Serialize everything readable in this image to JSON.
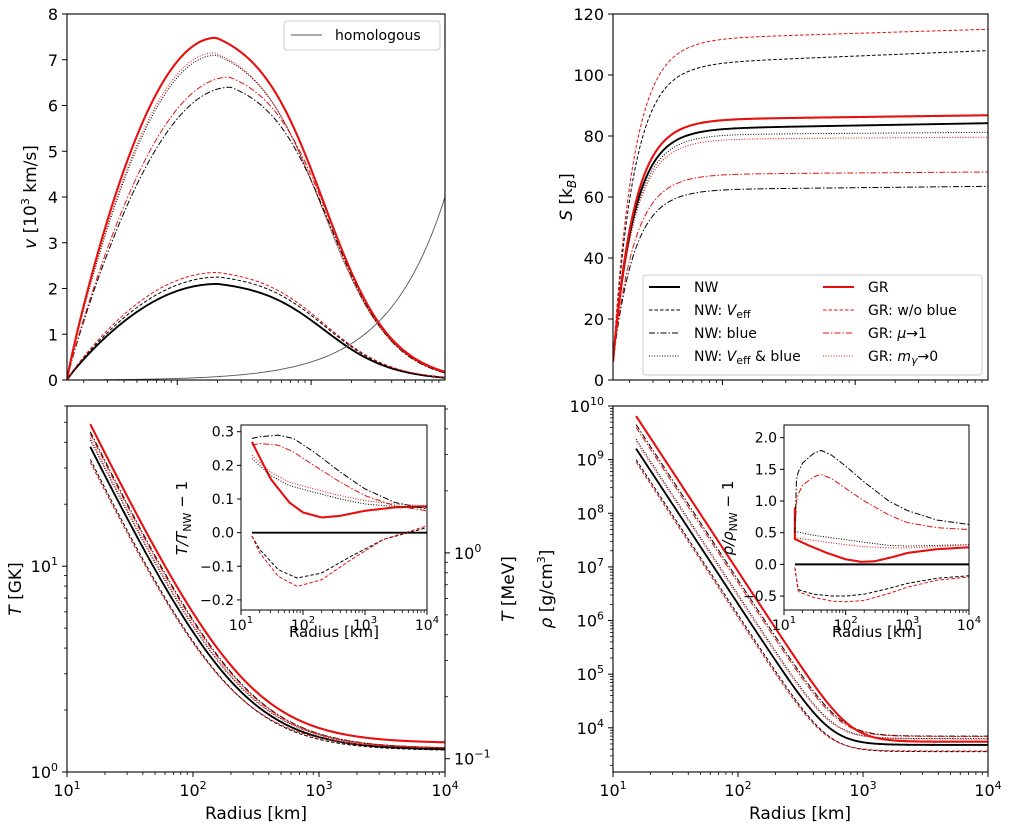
{
  "colors": {
    "nw": "#000000",
    "gr": "#e8100f",
    "homologous": "#555555",
    "frame": "#000000"
  },
  "labels": {
    "radius": "Radius [km]",
    "v_var": "v",
    "v_unit_pre": "[10",
    "v_unit_exp": "3",
    "v_unit_post": " km/s]",
    "s_var": "S",
    "s_unit_pre": "[k",
    "s_unit_sub": "B",
    "s_unit_post": "]",
    "t_var": "T",
    "t_unit": "[GK]",
    "t_unit_r": "[MeV]",
    "rho_var": "ρ",
    "rho_unit_pre": "[g/cm",
    "rho_unit_exp": "3",
    "rho_unit_post": "]",
    "dt_pre": "T/T",
    "dt_sub": "NW",
    "dt_post": " − 1",
    "drho_pre": "ρ/ρ",
    "drho_sub": "NW",
    "drho_post": " − 1"
  },
  "legend_homologous": "homologous",
  "legend": {
    "nw": "NW",
    "nw_veff_pre": "NW: ",
    "nw_veff_var": "V",
    "nw_veff_sub": "eff",
    "nw_blue": "NW: blue",
    "nw_vb_pre": "NW: ",
    "nw_vb_var": "V",
    "nw_vb_sub": "eff",
    "nw_vb_post": " & blue",
    "gr": "GR",
    "gr_woblue": "GR: w/o blue",
    "gr_mu_pre": "GR: ",
    "gr_mu_var": "μ",
    "gr_mu_post": "→1",
    "gr_m_pre": "GR: ",
    "gr_m_var": "m",
    "gr_m_sub": "γ",
    "gr_m_post": "→0"
  },
  "chart_data": [
    {
      "panel": "velocity",
      "type": "line",
      "xlabel": "Radius [km]",
      "ylabel": "v [10^3 km/s]",
      "xscale": "log",
      "xlim": [
        15,
        10000
      ],
      "ylim": [
        0,
        8
      ],
      "yticks": [
        "0",
        "1",
        "2",
        "3",
        "4",
        "5",
        "6",
        "7",
        "8"
      ],
      "series": [
        {
          "name": "NW",
          "style": "solid",
          "color": "nw",
          "peak_r": 200,
          "peak_v": 2.1
        },
        {
          "name": "NW: Veff",
          "style": "dashed",
          "color": "nw",
          "peak_r": 205,
          "peak_v": 2.25
        },
        {
          "name": "NW: Veff & blue",
          "style": "dotted",
          "color": "nw",
          "peak_r": 195,
          "peak_v": 7.1
        },
        {
          "name": "NW: blue",
          "style": "dashdot",
          "color": "nw",
          "peak_r": 250,
          "peak_v": 6.4
        },
        {
          "name": "GR",
          "style": "solid",
          "color": "gr",
          "peak_r": 195,
          "peak_v": 7.48
        },
        {
          "name": "GR: w/o blue",
          "style": "dashed",
          "color": "gr",
          "peak_r": 200,
          "peak_v": 2.35
        },
        {
          "name": "GR: mγ→0",
          "style": "dotted",
          "color": "gr",
          "peak_r": 190,
          "peak_v": 7.15
        },
        {
          "name": "GR: μ→1",
          "style": "dashdot",
          "color": "gr",
          "peak_r": 245,
          "peak_v": 6.62
        },
        {
          "name": "homologous",
          "style": "thin",
          "color": "homologous",
          "v_at_rmax": 4.0
        }
      ]
    },
    {
      "panel": "entropy",
      "type": "line",
      "xlabel": "Radius [km]",
      "ylabel": "S [k_B]",
      "xscale": "log",
      "xlim": [
        15,
        10000
      ],
      "ylim": [
        0,
        120
      ],
      "yticks": [
        "0",
        "20",
        "40",
        "60",
        "80",
        "100",
        "120"
      ],
      "series": [
        {
          "name": "NW",
          "style": "solid",
          "color": "nw",
          "s0": 6,
          "s_plateau": 82.5,
          "s_end": 84.2
        },
        {
          "name": "NW: Veff",
          "style": "dashed",
          "color": "nw",
          "s0": 6,
          "s_plateau": 104,
          "s_end": 108
        },
        {
          "name": "NW: blue",
          "style": "dashdot",
          "color": "nw",
          "s0": 6,
          "s_plateau": 62.5,
          "s_end": 63.5
        },
        {
          "name": "NW: Veff & blue",
          "style": "dotted",
          "color": "nw",
          "s0": 6,
          "s_plateau": 80.5,
          "s_end": 81.2
        },
        {
          "name": "GR",
          "style": "solid",
          "color": "gr",
          "s0": 6,
          "s_plateau": 85.5,
          "s_end": 86.8
        },
        {
          "name": "GR: w/o blue",
          "style": "dashed",
          "color": "gr",
          "s0": 6,
          "s_plateau": 112,
          "s_end": 115
        },
        {
          "name": "GR: μ→1",
          "style": "dashdot",
          "color": "gr",
          "s0": 6,
          "s_plateau": 67.5,
          "s_end": 68.2
        },
        {
          "name": "GR: mγ→0",
          "style": "dotted",
          "color": "gr",
          "s0": 6,
          "s_plateau": 79,
          "s_end": 79.6
        }
      ]
    },
    {
      "panel": "temperature",
      "type": "line",
      "xlabel": "Radius [km]",
      "ylabel": "T [GK]",
      "ylabel_right": "T [MeV]",
      "xscale": "log",
      "yscale": "log",
      "xlim": [
        10,
        10000
      ],
      "ylim": [
        1,
        60
      ],
      "yticks": [
        "10^0",
        "10^1"
      ],
      "yticks_right": [
        "10^-1",
        "10^0"
      ],
      "series": [
        {
          "name": "NW",
          "style": "solid",
          "color": "nw",
          "t_start": 38,
          "t_end": 1.28
        },
        {
          "name": "NW: Veff",
          "style": "dashed",
          "color": "nw",
          "t_start": 33,
          "t_end": 1.27
        },
        {
          "name": "NW: blue",
          "style": "dashdot",
          "color": "nw",
          "t_start": 45,
          "t_end": 1.3
        },
        {
          "name": "NW: Veff & blue",
          "style": "dotted",
          "color": "nw",
          "t_start": 41,
          "t_end": 1.3
        },
        {
          "name": "GR",
          "style": "solid",
          "color": "gr",
          "t_start": 49,
          "t_end": 1.38
        },
        {
          "name": "GR: w/o blue",
          "style": "dashed",
          "color": "gr",
          "t_start": 32,
          "t_end": 1.3
        },
        {
          "name": "GR: μ→1",
          "style": "dashdot",
          "color": "gr",
          "t_start": 44,
          "t_end": 1.3
        },
        {
          "name": "GR: mγ→0",
          "style": "dotted",
          "color": "gr",
          "t_start": 42,
          "t_end": 1.3
        }
      ]
    },
    {
      "panel": "temperature-ratio-inset",
      "type": "line",
      "xlabel": "Radius [km]",
      "ylabel": "T/T_NW − 1",
      "xscale": "log",
      "xlim": [
        10,
        10000
      ],
      "ylim": [
        -0.23,
        0.32
      ],
      "yticks": [
        "−0.2",
        "−0.1",
        "0.0",
        "0.1",
        "0.2",
        "0.3"
      ],
      "series": [
        {
          "name": "NW",
          "style": "solid",
          "color": "nw",
          "x": [
            15,
            10000
          ],
          "y": [
            0,
            0
          ]
        },
        {
          "name": "GR",
          "style": "solid",
          "color": "gr",
          "x": [
            15,
            17,
            30,
            60,
            100,
            200,
            400,
            1000,
            3000,
            10000
          ],
          "y": [
            0.27,
            0.25,
            0.16,
            0.09,
            0.06,
            0.045,
            0.05,
            0.065,
            0.075,
            0.078
          ]
        },
        {
          "name": "NW: blue",
          "style": "dashdot",
          "color": "nw",
          "x": [
            15,
            20,
            40,
            70,
            150,
            400,
            1000,
            3000,
            10000
          ],
          "y": [
            0.28,
            0.285,
            0.29,
            0.28,
            0.24,
            0.18,
            0.13,
            0.09,
            0.07
          ]
        },
        {
          "name": "GR: μ→1",
          "style": "dashdot",
          "color": "gr",
          "x": [
            15,
            20,
            40,
            70,
            150,
            400,
            1000,
            3000,
            10000
          ],
          "y": [
            0.26,
            0.265,
            0.26,
            0.24,
            0.2,
            0.15,
            0.11,
            0.08,
            0.065
          ]
        },
        {
          "name": "NW: Veff & blue",
          "style": "dotted",
          "color": "nw",
          "x": [
            15,
            30,
            60,
            150,
            400,
            1000,
            3000,
            10000
          ],
          "y": [
            0.22,
            0.17,
            0.14,
            0.12,
            0.1,
            0.085,
            0.078,
            0.075
          ]
        },
        {
          "name": "GR: mγ→0",
          "style": "dotted",
          "color": "gr",
          "x": [
            15,
            30,
            60,
            150,
            400,
            1000,
            3000,
            10000
          ],
          "y": [
            0.23,
            0.18,
            0.15,
            0.13,
            0.11,
            0.095,
            0.085,
            0.08
          ]
        },
        {
          "name": "NW: Veff",
          "style": "dashed",
          "color": "nw",
          "x": [
            15,
            20,
            40,
            80,
            200,
            600,
            2000,
            10000
          ],
          "y": [
            -0.01,
            -0.05,
            -0.11,
            -0.135,
            -0.12,
            -0.07,
            -0.02,
            0.015
          ]
        },
        {
          "name": "GR: w/o blue",
          "style": "dashed",
          "color": "gr",
          "x": [
            15,
            20,
            40,
            80,
            200,
            600,
            2000,
            10000
          ],
          "y": [
            -0.01,
            -0.06,
            -0.13,
            -0.16,
            -0.14,
            -0.08,
            -0.02,
            0.02
          ]
        }
      ]
    },
    {
      "panel": "density",
      "type": "line",
      "xlabel": "Radius [km]",
      "ylabel": "ρ [g/cm^3]",
      "xscale": "log",
      "yscale": "log",
      "xlim": [
        10,
        10000
      ],
      "ylim": [
        1500,
        10000000000
      ],
      "yticks": [
        "10^4",
        "10^5",
        "10^6",
        "10^7",
        "10^8",
        "10^9",
        "10^10"
      ],
      "series": [
        {
          "name": "NW",
          "style": "solid",
          "color": "nw",
          "rho_start": 1600000000,
          "rho_end": 4800
        },
        {
          "name": "NW: Veff",
          "style": "dashed",
          "color": "nw",
          "rho_start": 1000000000,
          "rho_end": 3600
        },
        {
          "name": "NW: blue",
          "style": "dashdot",
          "color": "nw",
          "rho_start": 4500000000,
          "rho_end": 7000
        },
        {
          "name": "NW: Veff & blue",
          "style": "dotted",
          "color": "nw",
          "rho_start": 2400000000,
          "rho_end": 6300
        },
        {
          "name": "GR",
          "style": "solid",
          "color": "gr",
          "rho_start": 6500000000,
          "rho_end": 5500
        },
        {
          "name": "GR: w/o blue",
          "style": "dashed",
          "color": "gr",
          "rho_start": 900000000,
          "rho_end": 3700
        },
        {
          "name": "GR: μ→1",
          "style": "dashdot",
          "color": "gr",
          "rho_start": 4000000000,
          "rho_end": 6900
        },
        {
          "name": "GR: mγ→0",
          "style": "dotted",
          "color": "gr",
          "rho_start": 2200000000,
          "rho_end": 6200
        }
      ]
    },
    {
      "panel": "density-ratio-inset",
      "type": "line",
      "xlabel": "Radius [km]",
      "ylabel": "ρ/ρ_NW − 1",
      "xscale": "log",
      "xlim": [
        10,
        10000
      ],
      "ylim": [
        -0.72,
        2.2
      ],
      "yticks": [
        "−0.5",
        "0.0",
        "0.5",
        "1.0",
        "1.5",
        "2.0"
      ],
      "series": [
        {
          "name": "NW",
          "style": "solid",
          "color": "nw",
          "x": [
            15,
            10000
          ],
          "y": [
            0,
            0
          ]
        },
        {
          "name": "GR",
          "style": "solid",
          "color": "gr",
          "x": [
            15,
            15,
            25,
            50,
            100,
            180,
            300,
            600,
            1000,
            3000,
            10000
          ],
          "y": [
            0.9,
            0.4,
            0.3,
            0.18,
            0.08,
            0.04,
            0.05,
            0.12,
            0.18,
            0.24,
            0.27
          ]
        },
        {
          "name": "NW: blue",
          "style": "dashdot",
          "color": "nw",
          "x": [
            15,
            16,
            20,
            30,
            40,
            60,
            100,
            200,
            500,
            1000,
            3000,
            10000
          ],
          "y": [
            0.5,
            1.4,
            1.6,
            1.75,
            1.8,
            1.72,
            1.55,
            1.3,
            1.0,
            0.85,
            0.7,
            0.63
          ]
        },
        {
          "name": "GR: μ→1",
          "style": "dashdot",
          "color": "gr",
          "x": [
            15,
            16,
            20,
            30,
            40,
            60,
            100,
            200,
            500,
            1000,
            3000,
            10000
          ],
          "y": [
            0.4,
            1.05,
            1.25,
            1.38,
            1.42,
            1.35,
            1.2,
            1.0,
            0.78,
            0.66,
            0.58,
            0.55
          ]
        },
        {
          "name": "NW: Veff & blue",
          "style": "dotted",
          "color": "nw",
          "x": [
            15,
            30,
            60,
            100,
            200,
            500,
            1000,
            3000,
            10000
          ],
          "y": [
            0.52,
            0.46,
            0.42,
            0.39,
            0.35,
            0.3,
            0.29,
            0.3,
            0.31
          ]
        },
        {
          "name": "GR: mγ→0",
          "style": "dotted",
          "color": "gr",
          "x": [
            15,
            30,
            60,
            100,
            200,
            500,
            1000,
            3000,
            10000
          ],
          "y": [
            0.42,
            0.38,
            0.34,
            0.31,
            0.28,
            0.26,
            0.26,
            0.28,
            0.31
          ]
        },
        {
          "name": "NW: Veff",
          "style": "dashed",
          "color": "nw",
          "x": [
            15,
            17,
            30,
            60,
            100,
            200,
            500,
            1000,
            3000,
            10000
          ],
          "y": [
            -0.05,
            -0.4,
            -0.47,
            -0.5,
            -0.5,
            -0.47,
            -0.38,
            -0.3,
            -0.22,
            -0.18
          ]
        },
        {
          "name": "GR: w/o blue",
          "style": "dashed",
          "color": "gr",
          "x": [
            15,
            17,
            30,
            60,
            100,
            200,
            500,
            1000,
            3000,
            10000
          ],
          "y": [
            -0.05,
            -0.43,
            -0.52,
            -0.58,
            -0.59,
            -0.57,
            -0.46,
            -0.36,
            -0.25,
            -0.2
          ]
        }
      ]
    }
  ]
}
